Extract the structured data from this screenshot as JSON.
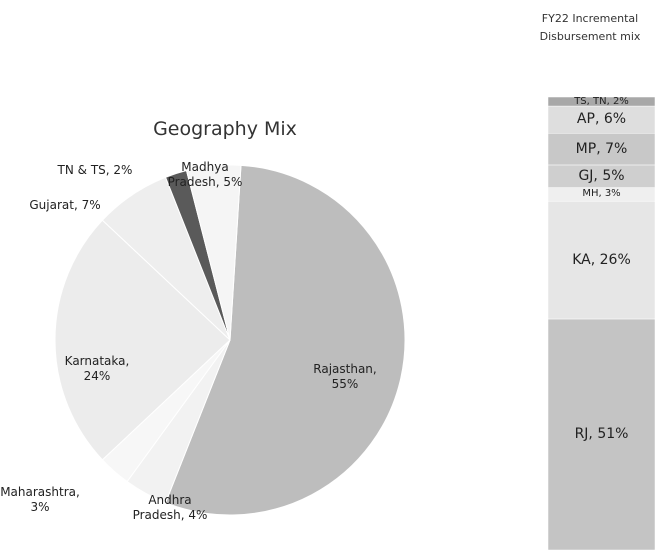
{
  "chart_data": [
    {
      "type": "pie",
      "title": "Geography Mix",
      "values": [
        55,
        4,
        3,
        24,
        7,
        2,
        5
      ],
      "value_labels": [
        "Rajasthan, 55%",
        "Andhra Pradesh, 4%",
        "Maharashtra, 3%",
        "Karnataka, 24%",
        "Gujarat, 7%",
        "TN & TS, 2%",
        "Madhya Pradesh, 5%"
      ],
      "colors": [
        "#bdbdbd",
        "#f2f2f2",
        "#f7f7f7",
        "#ececec",
        "#eeeeee",
        "#5a5a5a",
        "#f5f5f5"
      ]
    },
    {
      "type": "stacked_bar",
      "title": "FY22 Incremental Disbursement mix",
      "values": [
        51,
        26,
        3,
        5,
        7,
        6,
        2
      ],
      "value_labels": [
        "RJ, 51%",
        "KA, 26%",
        "MH, 3%",
        "GJ, 5%",
        "MP, 7%",
        "AP, 6%",
        "TS, TN, 2%"
      ],
      "colors": [
        "#c4c4c4",
        "#e6e6e6",
        "#efefef",
        "#cfcfcf",
        "#c8c8c8",
        "#dedede",
        "#a8a8a8"
      ]
    }
  ]
}
